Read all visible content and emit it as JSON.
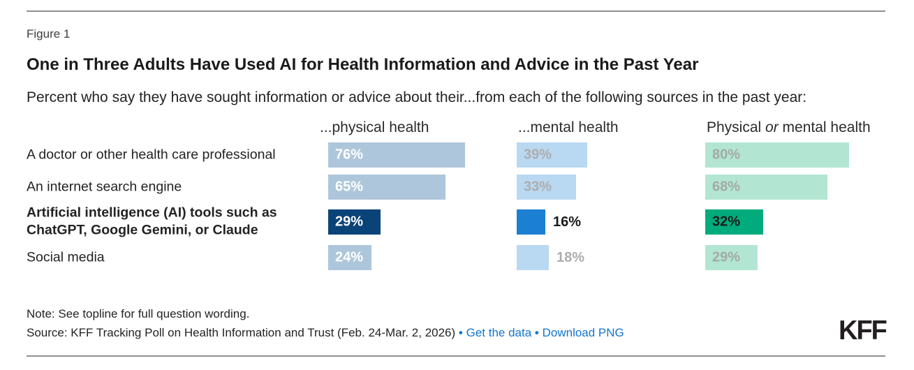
{
  "figure_label": "Figure 1",
  "title": "One in Three Adults Have Used AI for Health Information and Advice in the Past Year",
  "subtitle": "Percent who say they have sought information or advice about their...from each of the following sources in the past year:",
  "column_headers": {
    "physical": "...physical health",
    "mental": "...mental health",
    "combined_pre": "Physical ",
    "combined_italic": "or",
    "combined_post": " mental health"
  },
  "chart_data": {
    "type": "bar",
    "orientation": "horizontal",
    "unit": "%",
    "xlim": [
      0,
      100
    ],
    "grid": false,
    "legend_position": "column-headers-top",
    "categories": [
      "A doctor or other health care professional",
      "An internet search engine",
      "Artificial intelligence (AI) tools such as ChatGPT, Google Gemini, or Claude",
      "Social media"
    ],
    "highlight_row": 2,
    "series": [
      {
        "name": "...physical health",
        "values": [
          76,
          65,
          29,
          24
        ],
        "color_base": "#aec6db",
        "color_highlight": "#0a4377",
        "value_label_color": "#ffffff",
        "value_label_color_highlight": "#ffffff"
      },
      {
        "name": "...mental health",
        "values": [
          39,
          33,
          16,
          18
        ],
        "color_base": "#b9d8f2",
        "color_highlight": "#1b80d2",
        "value_label_color": "#adadad",
        "value_label_color_highlight": "#1a1a1a"
      },
      {
        "name": "Physical or mental health",
        "values": [
          80,
          68,
          32,
          29
        ],
        "color_base": "#b2e6d2",
        "color_highlight": "#00ab7c",
        "value_label_color": "#a3aba6",
        "value_label_color_highlight": "#1a1a1a"
      }
    ]
  },
  "note": "Note: See topline for full question wording.",
  "source": {
    "text": "Source: KFF Tracking Poll on Health Information and Trust (Feb. 24-Mar. 2, 2026)",
    "separator": "•",
    "links": [
      {
        "label": "Get the data"
      },
      {
        "label": "Download PNG"
      }
    ]
  },
  "logo_text": "KFF",
  "colors": {
    "link_blue": "#1475cf",
    "rule_gray": "#8f8f8f",
    "highlight_navy": "#0a4377",
    "highlight_blue": "#1b80d2",
    "highlight_green": "#00ab7c"
  }
}
